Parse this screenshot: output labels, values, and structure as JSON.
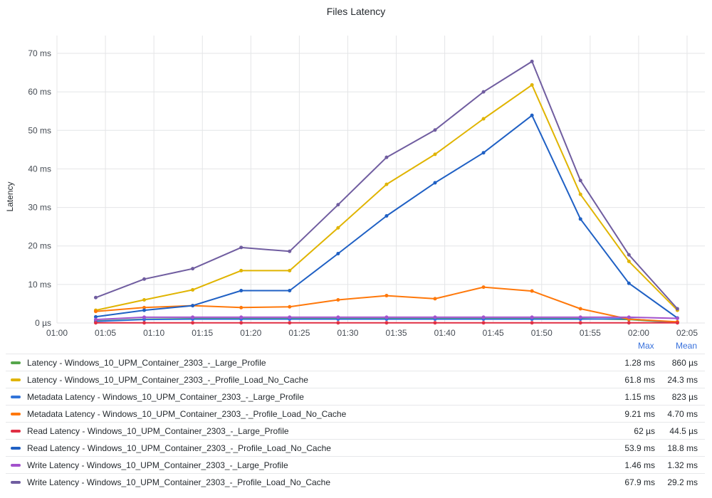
{
  "title": "Files Latency",
  "legend_headers": {
    "max": "Max",
    "mean": "Mean"
  },
  "chart_data": {
    "type": "line",
    "title": "Files Latency",
    "xlabel": "",
    "ylabel": "Latency",
    "x_ticks": [
      "01:00",
      "01:05",
      "01:10",
      "01:15",
      "01:20",
      "01:25",
      "01:30",
      "01:35",
      "01:40",
      "01:45",
      "01:50",
      "01:55",
      "02:00",
      "02:05"
    ],
    "x_minutes": [
      64,
      69,
      74,
      79,
      84,
      89,
      94,
      99,
      104,
      109,
      114,
      119,
      124
    ],
    "x_range": [
      60,
      125
    ],
    "y_ticks": [
      "0 µs",
      "10 ms",
      "20 ms",
      "30 ms",
      "40 ms",
      "50 ms",
      "60 ms",
      "70 ms"
    ],
    "ylim": [
      0,
      70
    ],
    "unit": "ms",
    "series": [
      {
        "name": "Latency - Windows_10_UPM_Container_2303_-_Large_Profile",
        "color": "#56a64b",
        "max": "1.28 ms",
        "mean": "860 µs",
        "values": [
          0.5,
          1.0,
          1.1,
          1.1,
          1.1,
          1.1,
          1.1,
          1.1,
          1.1,
          1.1,
          1.1,
          0.9,
          0.1
        ]
      },
      {
        "name": "Latency - Windows_10_UPM_Container_2303_-_Profile_Load_No_Cache",
        "color": "#e0b400",
        "max": "61.8 ms",
        "mean": "24.3 ms",
        "values": [
          3.3,
          6.0,
          8.6,
          13.6,
          13.6,
          24.7,
          36.0,
          43.8,
          53.0,
          61.8,
          33.4,
          16.0,
          3.3
        ]
      },
      {
        "name": "Metadata Latency - Windows_10_UPM_Container_2303_-_Large_Profile",
        "color": "#3274d9",
        "max": "1.15 ms",
        "mean": "823 µs",
        "values": [
          0.4,
          0.9,
          1.0,
          1.0,
          1.0,
          1.0,
          1.0,
          1.0,
          1.0,
          1.0,
          1.0,
          1.1,
          0.1
        ]
      },
      {
        "name": "Metadata Latency - Windows_10_UPM_Container_2303_-_Profile_Load_No_Cache",
        "color": "#ff780a",
        "max": "9.21 ms",
        "mean": "4.70 ms",
        "values": [
          3.0,
          4.0,
          4.5,
          4.0,
          4.2,
          6.0,
          7.1,
          6.3,
          9.3,
          8.3,
          3.7,
          1.0,
          0.3
        ]
      },
      {
        "name": "Read Latency - Windows_10_UPM_Container_2303_-_Large_Profile",
        "color": "#e02f44",
        "max": "62 µs",
        "mean": "44.5 µs",
        "values": [
          0.05,
          0.05,
          0.05,
          0.05,
          0.05,
          0.05,
          0.05,
          0.05,
          0.05,
          0.05,
          0.05,
          0.05,
          0.05
        ]
      },
      {
        "name": "Read Latency - Windows_10_UPM_Container_2303_-_Profile_Load_No_Cache",
        "color": "#1f60c4",
        "max": "53.9 ms",
        "mean": "18.8 ms",
        "values": [
          1.6,
          3.3,
          4.5,
          8.4,
          8.4,
          18.0,
          27.8,
          36.4,
          44.2,
          53.9,
          27.0,
          10.3,
          1.3
        ]
      },
      {
        "name": "Write Latency - Windows_10_UPM_Container_2303_-_Large_Profile",
        "color": "#a352cc",
        "max": "1.46 ms",
        "mean": "1.32 ms",
        "values": [
          0.9,
          1.5,
          1.5,
          1.5,
          1.5,
          1.5,
          1.5,
          1.5,
          1.5,
          1.5,
          1.5,
          1.5,
          1.2
        ]
      },
      {
        "name": "Write Latency - Windows_10_UPM_Container_2303_-_Profile_Load_No_Cache",
        "color": "#705da0",
        "max": "67.9 ms",
        "mean": "29.2 ms",
        "values": [
          6.6,
          11.4,
          14.1,
          19.6,
          18.6,
          30.7,
          43.0,
          50.1,
          60.0,
          67.9,
          37.0,
          17.7,
          3.7
        ]
      }
    ]
  }
}
